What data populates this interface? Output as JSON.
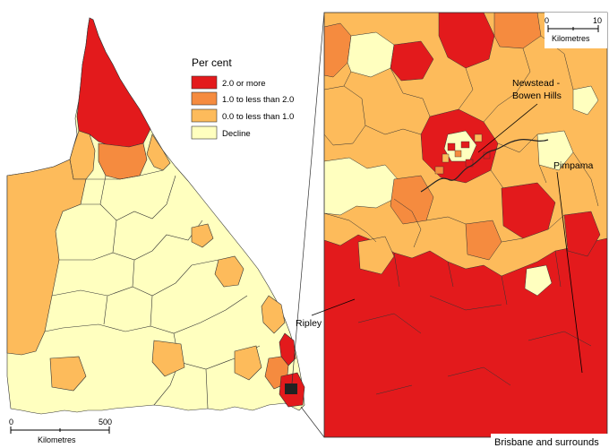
{
  "legend": {
    "title": "Per cent",
    "items": [
      {
        "label": "2.0 or more",
        "color": "#e31a1c"
      },
      {
        "label": "1.0 to less than 2.0",
        "color": "#f58b3f"
      },
      {
        "label": "0.0 to less than 1.0",
        "color": "#fdbb5b"
      },
      {
        "label": "Decline",
        "color": "#ffffbf"
      }
    ]
  },
  "main_map": {
    "scale": {
      "start": "0",
      "end": "500",
      "unit": "Kilometres"
    }
  },
  "inset_map": {
    "caption": "Brisbane and surrounds",
    "scale": {
      "start": "0",
      "end": "10",
      "unit": "Kilometres"
    },
    "labels": {
      "newstead_line1": "Newstead -",
      "newstead_line2": "Bowen Hills",
      "pimpama": "Pimpama",
      "ripley": "Ripley"
    }
  }
}
